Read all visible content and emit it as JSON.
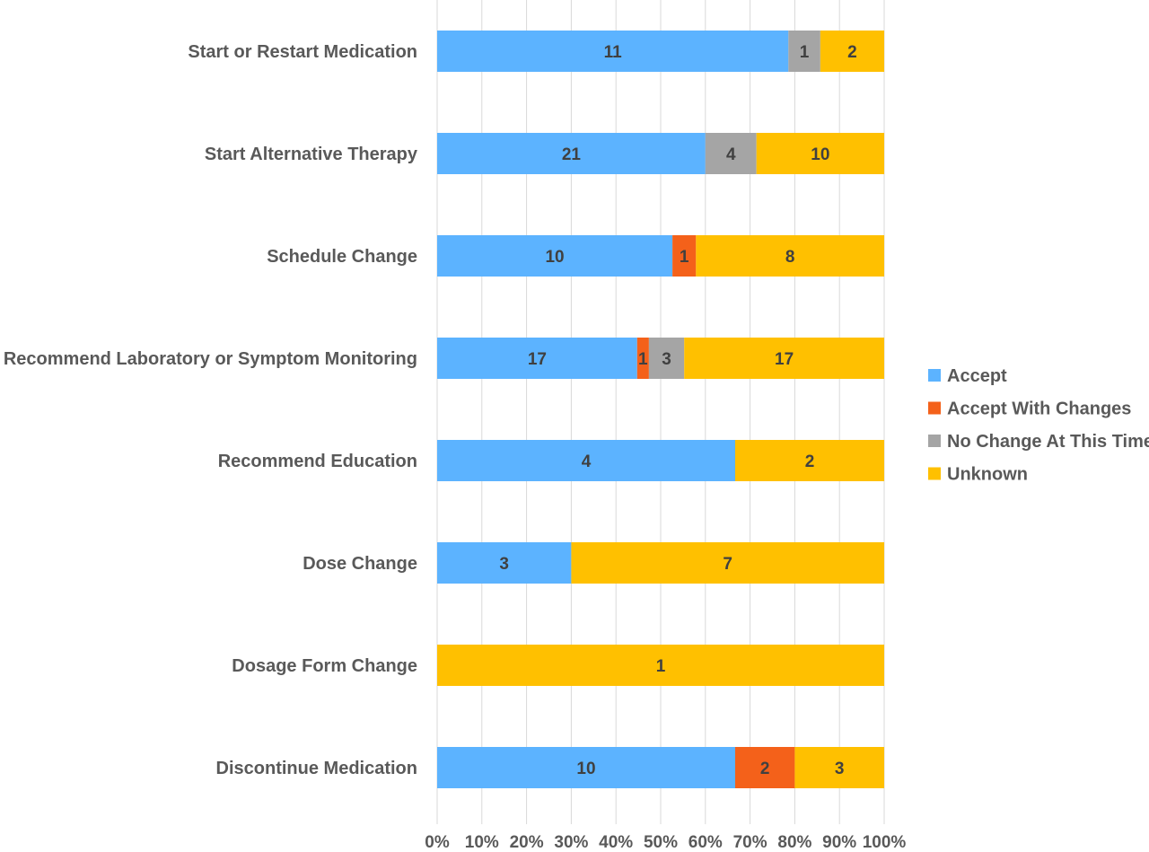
{
  "chart_data": {
    "type": "bar",
    "orientation": "horizontal",
    "stacking": "percent",
    "categories": [
      "Start or Restart Medication",
      "Start Alternative Therapy",
      "Schedule Change",
      "Recommend Laboratory or Symptom Monitoring",
      "Recommend Education",
      "Dose Change",
      "Dosage Form Change",
      "Discontinue Medication"
    ],
    "series": [
      {
        "name": "Accept",
        "color": "#5CB3FF",
        "values": [
          11,
          21,
          10,
          17,
          4,
          3,
          0,
          10
        ]
      },
      {
        "name": "Accept With Changes",
        "color": "#F4611A",
        "values": [
          0,
          0,
          1,
          1,
          0,
          0,
          0,
          2
        ]
      },
      {
        "name": "No Change At This Time",
        "color": "#A5A5A5",
        "values": [
          1,
          4,
          0,
          3,
          0,
          0,
          0,
          0
        ]
      },
      {
        "name": "Unknown",
        "color": "#FFC000",
        "values": [
          2,
          10,
          8,
          17,
          2,
          7,
          1,
          3
        ]
      }
    ],
    "x_ticks": [
      "0%",
      "10%",
      "20%",
      "30%",
      "40%",
      "50%",
      "60%",
      "70%",
      "80%",
      "90%",
      "100%"
    ],
    "xlim": [
      0,
      100
    ],
    "grid": true,
    "legend_position": "right",
    "title": "",
    "xlabel": "",
    "ylabel": ""
  }
}
